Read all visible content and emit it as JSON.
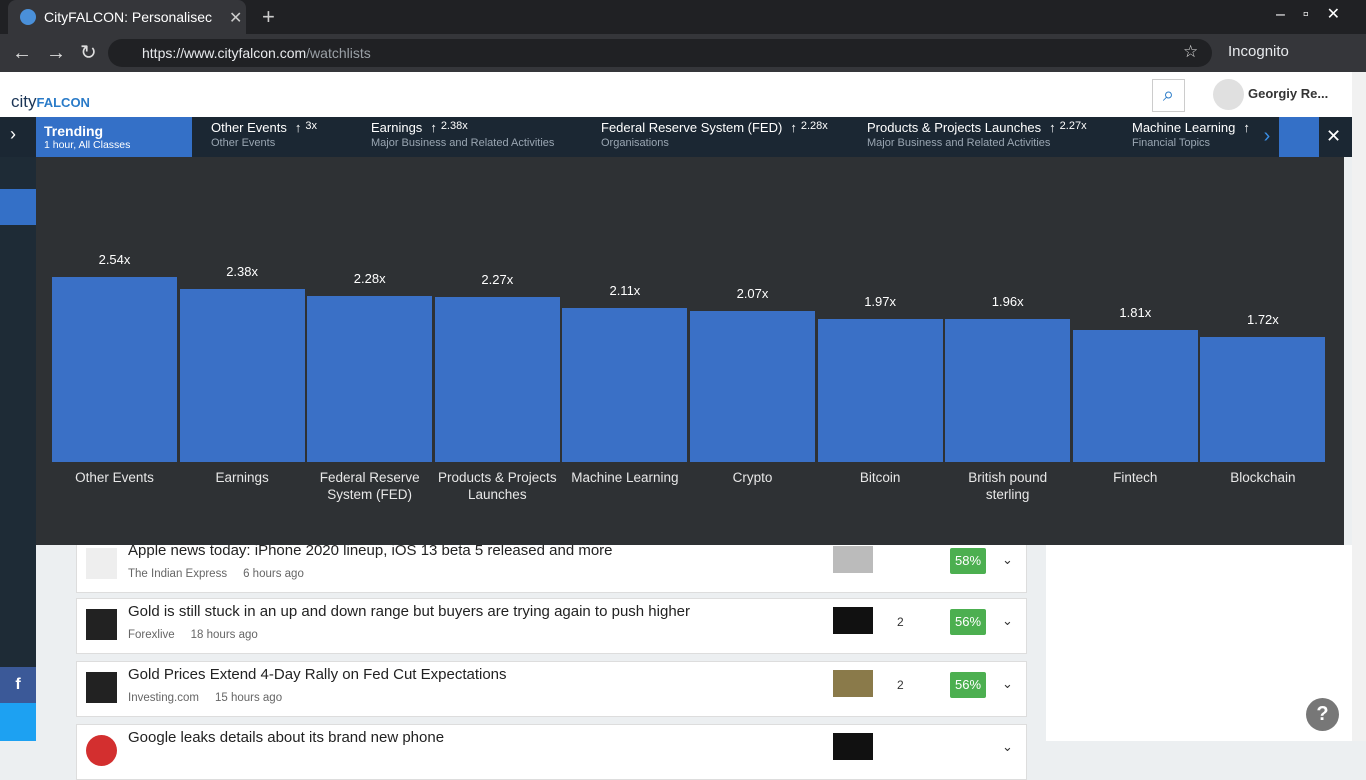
{
  "browser": {
    "tab_title": "CityFALCON: Personalisec",
    "url_host": "https://www.cityfalcon.com",
    "url_path": "/watchlists",
    "mode": "Incognito"
  },
  "header": {
    "logo_city": "city",
    "logo_falcon": "FALCON",
    "user": "Georgiy Re..."
  },
  "trending": {
    "title": "Trending",
    "subtitle": "1 hour,  All Classes",
    "items": [
      {
        "name": "Other Events",
        "ratio": "3x",
        "group": "Other Events"
      },
      {
        "name": "Earnings",
        "ratio": "2.38x",
        "group": "Major Business and Related Activities"
      },
      {
        "name": "Federal Reserve System (FED)",
        "ratio": "2.28x",
        "group": "Organisations"
      },
      {
        "name": "Products & Projects Launches",
        "ratio": "2.27x",
        "group": "Major Business and Related Activities"
      },
      {
        "name": "Machine Learning",
        "group": "Financial Topics"
      }
    ]
  },
  "chart_data": {
    "type": "bar",
    "color": "#3a70c6",
    "categories": [
      "Other Events",
      "Earnings",
      "Federal Reserve System (FED)",
      "Products & Projects Launches",
      "Machine Learning",
      "Crypto",
      "Bitcoin",
      "British pound sterling",
      "Fintech",
      "Blockchain"
    ],
    "values": [
      2.54,
      2.38,
      2.28,
      2.27,
      2.11,
      2.07,
      1.97,
      1.96,
      1.81,
      1.72
    ],
    "value_labels": [
      "2.54x",
      "2.38x",
      "2.28x",
      "2.27x",
      "2.11x",
      "2.07x",
      "1.97x",
      "1.96x",
      "1.81x",
      "1.72x"
    ],
    "ylim": [
      0,
      4
    ]
  },
  "news": [
    {
      "title": "Apple news today: iPhone 2020 lineup, iOS 13 beta 5 released and more",
      "source": "The Indian Express",
      "time": "6 hours ago",
      "score": "58%"
    },
    {
      "title": "Gold is still stuck in an up and down range but buyers are trying again to push higher",
      "source": "Forexlive",
      "time": "18 hours ago",
      "count": "2",
      "score": "56%"
    },
    {
      "title": "Gold Prices Extend 4-Day Rally on Fed Cut Expectations",
      "source": "Investing.com",
      "time": "15 hours ago",
      "count": "2",
      "score": "56%"
    },
    {
      "title": "Google leaks details about its brand new phone"
    }
  ]
}
